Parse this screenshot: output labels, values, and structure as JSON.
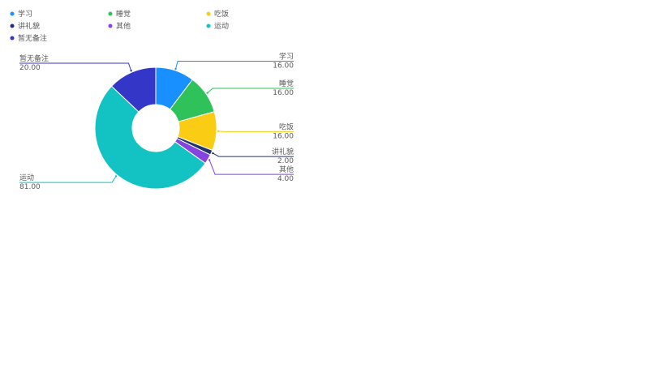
{
  "chart_data": {
    "type": "donut",
    "categories": [
      "学习",
      "睡觉",
      "吃饭",
      "讲礼貌",
      "其他",
      "运动",
      "暂无备注"
    ],
    "values": [
      16,
      16,
      16,
      2,
      4,
      81,
      20
    ],
    "value_labels": [
      "16.00",
      "16.00",
      "16.00",
      "2.00",
      "4.00",
      "81.00",
      "20.00"
    ],
    "colors": [
      "#1890ff",
      "#2fc25b",
      "#facc14",
      "#223273",
      "#8543e0",
      "#13c2c2",
      "#3436c7"
    ],
    "legend": "top-left"
  }
}
